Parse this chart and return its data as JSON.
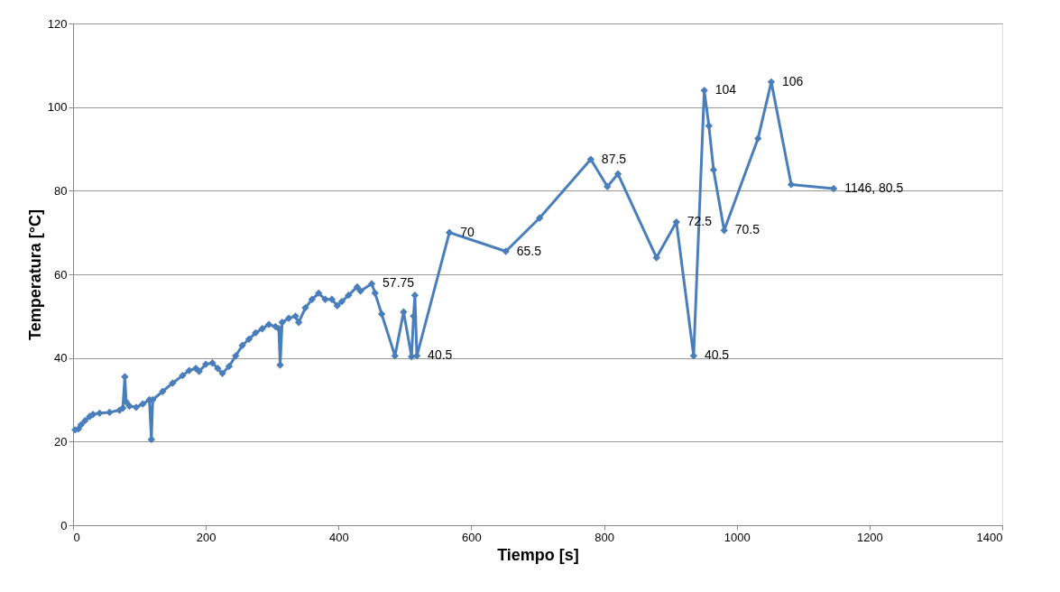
{
  "chart_data": {
    "type": "line",
    "xlabel": "Tiempo [s]",
    "ylabel": "Temperatura [°C]",
    "x": [
      3,
      8,
      12,
      18,
      25,
      30,
      40,
      55,
      70,
      75,
      78,
      80,
      85,
      95,
      105,
      115,
      118,
      120,
      135,
      150,
      165,
      175,
      185,
      190,
      200,
      210,
      218,
      225,
      235,
      245,
      255,
      265,
      275,
      285,
      295,
      305,
      310,
      312,
      315,
      325,
      335,
      340,
      350,
      360,
      370,
      380,
      390,
      398,
      405,
      415,
      428,
      433,
      450,
      455,
      465,
      485,
      498,
      510,
      513,
      515,
      518,
      567,
      652,
      703,
      780,
      805,
      821,
      879,
      909,
      935,
      951,
      958,
      965,
      981,
      1032,
      1052,
      1082,
      1146
    ],
    "series": [
      {
        "color": "#4a7ebb",
        "values": [
          22.8,
          23,
          24,
          25,
          26,
          26.5,
          26.8,
          27,
          27.5,
          28,
          35.5,
          29.5,
          28.5,
          28.2,
          29,
          30,
          20.5,
          30,
          32,
          34,
          35.8,
          37,
          37.5,
          36.8,
          38.5,
          38.8,
          37.5,
          36.3,
          38,
          40.5,
          43,
          44.5,
          46,
          47,
          48,
          47.5,
          47,
          38.3,
          48.5,
          49.5,
          50,
          48.5,
          52,
          54,
          55.5,
          54,
          54,
          52.5,
          53.5,
          55,
          57,
          56,
          57.75,
          55.5,
          50.5,
          40.5,
          51,
          40.3,
          50,
          55,
          40.5,
          70,
          65.5,
          73.5,
          87.5,
          81,
          84,
          64,
          72.5,
          40.5,
          104,
          95.5,
          85,
          70.5,
          92.5,
          106,
          81.5,
          80.5
        ],
        "value_labels": [
          null,
          null,
          null,
          null,
          null,
          null,
          null,
          null,
          null,
          null,
          null,
          null,
          null,
          null,
          null,
          null,
          null,
          null,
          null,
          null,
          null,
          null,
          null,
          null,
          null,
          null,
          null,
          null,
          null,
          null,
          null,
          null,
          null,
          null,
          null,
          null,
          null,
          null,
          null,
          null,
          null,
          null,
          null,
          null,
          null,
          null,
          null,
          null,
          null,
          null,
          null,
          null,
          "57.75",
          null,
          null,
          null,
          null,
          null,
          null,
          null,
          "40.5",
          "70",
          "65.5",
          null,
          "87.5",
          null,
          null,
          null,
          "72.5",
          "40.5",
          "104",
          null,
          null,
          "70.5",
          null,
          "106",
          null,
          "1146, 80.5"
        ]
      }
    ],
    "xlim": [
      0,
      1400
    ],
    "xticks": [
      0,
      200,
      400,
      600,
      800,
      1000,
      1200,
      1400
    ],
    "ylim": [
      0,
      120
    ],
    "yticks": [
      0,
      20,
      40,
      60,
      80,
      100,
      120
    ],
    "grid": "y",
    "marker": "diamond",
    "line_style": "solid"
  }
}
